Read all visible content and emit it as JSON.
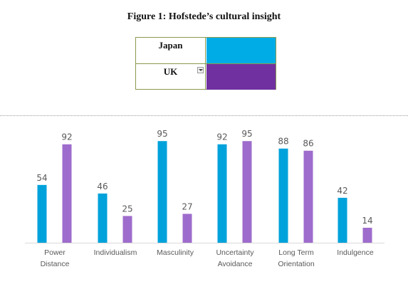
{
  "figure_title": "Figure 1: Hofstede’s cultural insight",
  "legend": [
    {
      "label": "Japan",
      "color": "#00ace6"
    },
    {
      "label": "UK",
      "color": "#7030a0"
    }
  ],
  "chart_data": {
    "type": "bar",
    "title": "",
    "categories": [
      [
        "Power",
        "Distance"
      ],
      [
        "Individualism"
      ],
      [
        "Masculinity"
      ],
      [
        "Uncertainty",
        "Avoidance"
      ],
      [
        "Long Term",
        "Orientation"
      ],
      [
        "Indulgence"
      ]
    ],
    "series": [
      {
        "name": "Japan",
        "color": "#00a2db",
        "values": [
          54,
          46,
          95,
          92,
          88,
          42
        ]
      },
      {
        "name": "UK",
        "color": "#9e6ccc",
        "values": [
          92,
          25,
          27,
          95,
          86,
          14
        ]
      }
    ],
    "ylim": [
      0,
      100
    ],
    "grid": false,
    "data_labels": true,
    "xlabel": "",
    "ylabel": ""
  }
}
